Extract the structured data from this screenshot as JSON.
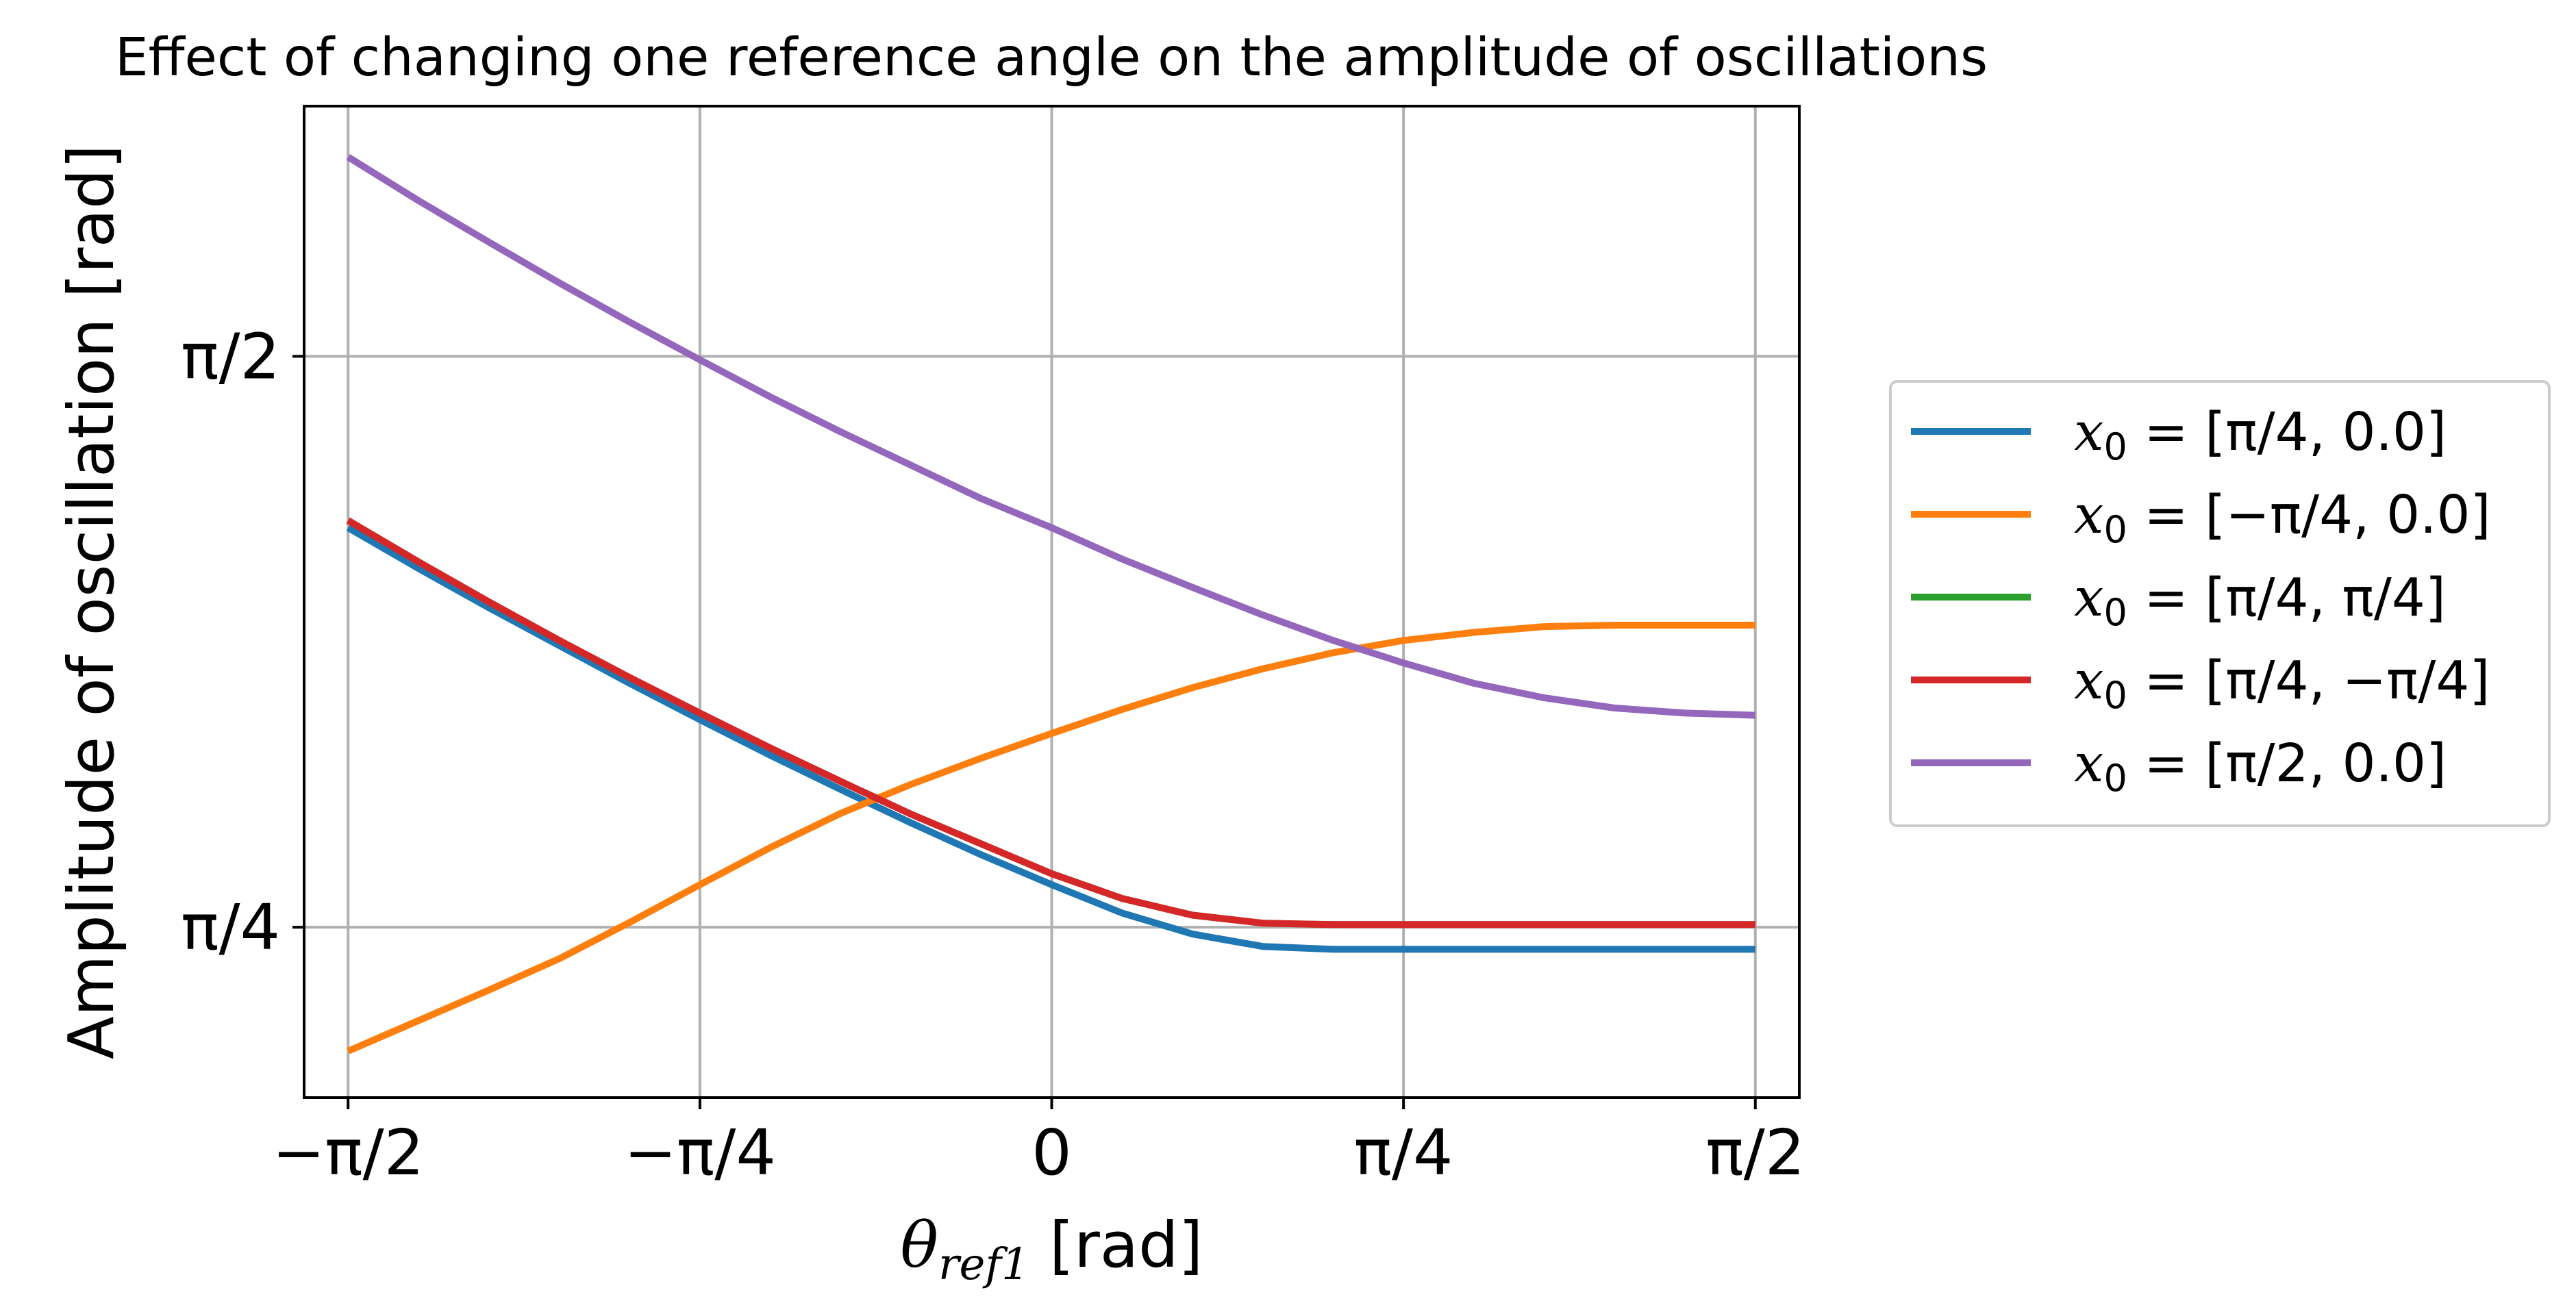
{
  "chart_data": {
    "type": "line",
    "title": "Effect of changing one reference angle on the amplitude of oscillations",
    "xlabel": "θref1 [rad]",
    "xlabel_main": "θ",
    "xlabel_sub": "ref1",
    "xlabel_unit": " [rad]",
    "ylabel": "Amplitude of oscillation [rad]",
    "xlim": [
      -1.669,
      1.669
    ],
    "ylim": [
      0.551,
      1.915
    ],
    "grid": true,
    "legend_position": "right",
    "x_ticks": [
      {
        "value": -1.5708,
        "label": "−π/2"
      },
      {
        "value": -0.7854,
        "label": "−π/4"
      },
      {
        "value": 0,
        "label": "0"
      },
      {
        "value": 0.7854,
        "label": "π/4"
      },
      {
        "value": 1.5708,
        "label": "π/2"
      }
    ],
    "y_ticks": [
      {
        "value": 0.7854,
        "label": "π/4"
      },
      {
        "value": 1.5708,
        "label": "π/2"
      }
    ],
    "x": [
      -1.5708,
      -1.4137,
      -1.2566,
      -1.0996,
      -0.9425,
      -0.7854,
      -0.6283,
      -0.4712,
      -0.3142,
      -0.1571,
      0.0,
      0.1571,
      0.3142,
      0.4712,
      0.6283,
      0.7854,
      0.9425,
      1.0996,
      1.2566,
      1.4137,
      1.5708
    ],
    "series": [
      {
        "name": "x0=[π/4,0.0]",
        "legend_main": "x",
        "legend_sub": "0",
        "legend_rest": " = [π/4, 0.0]",
        "color": "#1f77b4",
        "values": [
          1.335,
          1.279,
          1.225,
          1.173,
          1.121,
          1.071,
          1.022,
          0.975,
          0.929,
          0.885,
          0.844,
          0.805,
          0.776,
          0.759,
          0.755,
          0.755,
          0.755,
          0.755,
          0.755,
          0.755,
          0.755
        ]
      },
      {
        "name": "x0=[−π/4,0.0]",
        "legend_main": "x",
        "legend_sub": "0",
        "legend_rest": " = [−π/4, 0.0]",
        "color": "#ff7f0e",
        "values": [
          0.615,
          0.657,
          0.699,
          0.742,
          0.792,
          0.844,
          0.895,
          0.942,
          0.982,
          1.018,
          1.052,
          1.085,
          1.115,
          1.141,
          1.163,
          1.18,
          1.191,
          1.199,
          1.201,
          1.201,
          1.201
        ]
      },
      {
        "name": "x0=[π/4,π/4]",
        "legend_main": "x",
        "legend_sub": "0",
        "legend_rest": " = [π/4, π/4]",
        "color": "#2ca02c",
        "values": [
          1.345,
          1.288,
          1.233,
          1.18,
          1.129,
          1.08,
          1.032,
          0.986,
          0.941,
          0.9,
          0.859,
          0.825,
          0.802,
          0.791,
          0.789,
          0.789,
          0.789,
          0.789,
          0.789,
          0.789,
          0.789
        ]
      },
      {
        "name": "x0=[π/4,−π/4]",
        "legend_main": "x",
        "legend_sub": "0",
        "legend_rest": " = [π/4, −π/4]",
        "color": "#d62728",
        "values": [
          1.345,
          1.288,
          1.233,
          1.18,
          1.129,
          1.08,
          1.032,
          0.986,
          0.941,
          0.9,
          0.859,
          0.825,
          0.802,
          0.791,
          0.789,
          0.789,
          0.789,
          0.789,
          0.789,
          0.789,
          0.789
        ]
      },
      {
        "name": "x0=[π/2,0.0]",
        "legend_main": "x",
        "legend_sub": "0",
        "legend_rest": " = [π/2, 0.0]",
        "color": "#9467bd",
        "values": [
          1.845,
          1.785,
          1.728,
          1.672,
          1.618,
          1.566,
          1.515,
          1.467,
          1.421,
          1.375,
          1.335,
          1.292,
          1.253,
          1.215,
          1.18,
          1.149,
          1.121,
          1.101,
          1.087,
          1.08,
          1.077
        ]
      }
    ]
  }
}
